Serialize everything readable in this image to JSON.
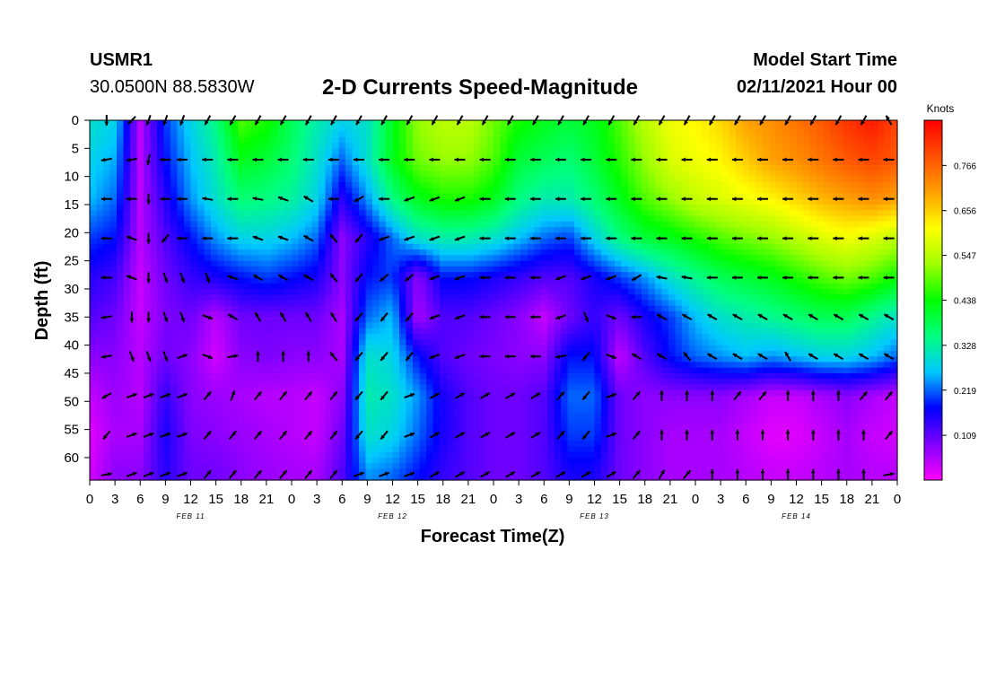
{
  "header": {
    "station": "USMR1",
    "coords": "30.0500N 88.5830W",
    "start_label": "Model Start Time",
    "start_date": "02/11/2021 Hour 00"
  },
  "chart_data": {
    "type": "heatmap",
    "title": "2-D Currents Speed-Magnitude",
    "xlabel": "Forecast Time(Z)",
    "ylabel": "Depth (ft)",
    "x_ticks": [
      "0",
      "3",
      "6",
      "9",
      "12",
      "15",
      "18",
      "21",
      "0",
      "3",
      "6",
      "9",
      "12",
      "15",
      "18",
      "21",
      "0",
      "3",
      "6",
      "9",
      "12",
      "15",
      "18",
      "21",
      "0",
      "3",
      "6",
      "9",
      "12",
      "15",
      "18",
      "21",
      "0"
    ],
    "x_range_hours": [
      0,
      96
    ],
    "day_labels": [
      "FEB 11",
      "FEB 12",
      "FEB 13",
      "FEB 14"
    ],
    "y_ticks": [
      0,
      5,
      10,
      15,
      20,
      25,
      30,
      35,
      40,
      45,
      50,
      55,
      60
    ],
    "y_range": [
      0,
      64
    ],
    "colorbar": {
      "title": "Knots",
      "ticks": [
        0.109,
        0.219,
        0.328,
        0.438,
        0.547,
        0.656,
        0.766
      ],
      "range": [
        0.0,
        0.876
      ],
      "colors": [
        "#ff00ff",
        "#8000ff",
        "#0000ff",
        "#00c8ff",
        "#00ff80",
        "#00ff00",
        "#a0ff00",
        "#ffff00",
        "#ffa000",
        "#ff5000",
        "#ff0000"
      ]
    },
    "speed_grid": {
      "hours": [
        0,
        3,
        6,
        9,
        12,
        15,
        18,
        21,
        24,
        27,
        30,
        33,
        36,
        39,
        42,
        45,
        48,
        51,
        54,
        57,
        60,
        63,
        66,
        69,
        72,
        75,
        78,
        81,
        84,
        87,
        90,
        93,
        96
      ],
      "depths": [
        0,
        7,
        14,
        21,
        28,
        35,
        42,
        49,
        56,
        63
      ],
      "values": [
        [
          0.3,
          0.28,
          0.05,
          0.2,
          0.28,
          0.35,
          0.48,
          0.45,
          0.38,
          0.32,
          0.28,
          0.3,
          0.42,
          0.52,
          0.55,
          0.55,
          0.5,
          0.45,
          0.42,
          0.4,
          0.42,
          0.48,
          0.55,
          0.6,
          0.62,
          0.65,
          0.7,
          0.72,
          0.75,
          0.78,
          0.82,
          0.85,
          0.8
        ],
        [
          0.28,
          0.25,
          0.05,
          0.18,
          0.26,
          0.32,
          0.42,
          0.4,
          0.36,
          0.3,
          0.22,
          0.3,
          0.42,
          0.5,
          0.52,
          0.52,
          0.48,
          0.4,
          0.38,
          0.36,
          0.4,
          0.46,
          0.52,
          0.58,
          0.6,
          0.62,
          0.66,
          0.7,
          0.72,
          0.75,
          0.78,
          0.8,
          0.78
        ],
        [
          0.26,
          0.22,
          0.05,
          0.15,
          0.24,
          0.3,
          0.36,
          0.35,
          0.33,
          0.28,
          0.15,
          0.24,
          0.35,
          0.42,
          0.45,
          0.45,
          0.42,
          0.35,
          0.32,
          0.32,
          0.36,
          0.42,
          0.48,
          0.52,
          0.56,
          0.58,
          0.6,
          0.62,
          0.65,
          0.68,
          0.7,
          0.72,
          0.7
        ],
        [
          0.2,
          0.18,
          0.05,
          0.12,
          0.18,
          0.24,
          0.28,
          0.28,
          0.26,
          0.22,
          0.08,
          0.15,
          0.22,
          0.3,
          0.32,
          0.32,
          0.3,
          0.26,
          0.22,
          0.2,
          0.28,
          0.35,
          0.4,
          0.42,
          0.45,
          0.48,
          0.5,
          0.52,
          0.55,
          0.58,
          0.6,
          0.58,
          0.55
        ],
        [
          0.15,
          0.13,
          0.04,
          0.1,
          0.14,
          0.16,
          0.18,
          0.2,
          0.18,
          0.16,
          0.08,
          0.18,
          0.2,
          0.08,
          0.18,
          0.18,
          0.16,
          0.14,
          0.12,
          0.12,
          0.16,
          0.2,
          0.24,
          0.3,
          0.34,
          0.38,
          0.4,
          0.42,
          0.45,
          0.48,
          0.5,
          0.48,
          0.44
        ],
        [
          0.12,
          0.1,
          0.04,
          0.09,
          0.1,
          0.05,
          0.1,
          0.1,
          0.1,
          0.1,
          0.06,
          0.22,
          0.26,
          0.06,
          0.12,
          0.12,
          0.1,
          0.08,
          0.04,
          0.1,
          0.14,
          0.1,
          0.16,
          0.2,
          0.26,
          0.3,
          0.32,
          0.34,
          0.36,
          0.38,
          0.38,
          0.34,
          0.3
        ],
        [
          0.08,
          0.08,
          0.05,
          0.1,
          0.08,
          0.03,
          0.08,
          0.09,
          0.08,
          0.08,
          0.06,
          0.3,
          0.28,
          0.18,
          0.12,
          0.1,
          0.09,
          0.08,
          0.08,
          0.18,
          0.18,
          0.04,
          0.12,
          0.18,
          0.22,
          0.24,
          0.26,
          0.24,
          0.26,
          0.28,
          0.28,
          0.26,
          0.22
        ],
        [
          0.04,
          0.07,
          0.05,
          0.14,
          0.08,
          0.07,
          0.06,
          0.05,
          0.05,
          0.04,
          0.08,
          0.32,
          0.3,
          0.24,
          0.16,
          0.12,
          0.1,
          0.1,
          0.12,
          0.22,
          0.22,
          0.1,
          0.08,
          0.08,
          0.08,
          0.08,
          0.06,
          0.04,
          0.04,
          0.06,
          0.08,
          0.06,
          0.04
        ],
        [
          0.02,
          0.06,
          0.06,
          0.16,
          0.09,
          0.08,
          0.07,
          0.06,
          0.05,
          0.04,
          0.1,
          0.3,
          0.28,
          0.22,
          0.16,
          0.12,
          0.1,
          0.1,
          0.12,
          0.2,
          0.2,
          0.1,
          0.08,
          0.06,
          0.06,
          0.06,
          0.04,
          0.02,
          0.02,
          0.04,
          0.06,
          0.04,
          0.03
        ],
        [
          0.03,
          0.08,
          0.08,
          0.15,
          0.1,
          0.1,
          0.08,
          0.07,
          0.06,
          0.06,
          0.12,
          0.24,
          0.22,
          0.18,
          0.14,
          0.12,
          0.1,
          0.1,
          0.12,
          0.16,
          0.16,
          0.1,
          0.08,
          0.06,
          0.06,
          0.06,
          0.05,
          0.04,
          0.04,
          0.05,
          0.06,
          0.05,
          0.05
        ]
      ]
    },
    "vectors": {
      "hours": [
        2,
        5,
        7,
        9,
        11,
        14,
        17,
        20,
        23,
        26,
        29,
        32,
        35,
        38,
        41,
        44,
        47,
        50,
        53,
        56,
        59,
        62,
        65,
        68,
        71,
        74,
        77,
        80,
        83,
        86,
        89,
        92,
        95
      ],
      "depths": [
        0,
        7,
        14,
        21,
        28,
        35,
        42,
        49,
        56,
        63
      ],
      "directions_deg": [
        [
          180,
          225,
          200,
          200,
          200,
          210,
          210,
          210,
          210,
          210,
          210,
          210,
          210,
          210,
          210,
          210,
          210,
          210,
          210,
          210,
          210,
          210,
          210,
          210,
          210,
          210,
          210,
          210,
          210,
          210,
          210,
          210,
          330
        ],
        [
          260,
          260,
          190,
          270,
          270,
          270,
          270,
          270,
          270,
          270,
          270,
          270,
          270,
          270,
          270,
          270,
          270,
          270,
          270,
          270,
          270,
          270,
          270,
          270,
          270,
          270,
          270,
          270,
          270,
          270,
          270,
          270,
          270
        ],
        [
          270,
          270,
          180,
          270,
          270,
          280,
          270,
          280,
          290,
          300,
          270,
          240,
          270,
          250,
          250,
          250,
          270,
          270,
          270,
          270,
          270,
          270,
          270,
          270,
          270,
          270,
          270,
          270,
          270,
          270,
          270,
          270,
          270
        ],
        [
          270,
          290,
          180,
          220,
          270,
          270,
          270,
          290,
          290,
          300,
          320,
          220,
          250,
          250,
          250,
          250,
          270,
          270,
          270,
          270,
          270,
          270,
          270,
          270,
          270,
          270,
          270,
          270,
          270,
          270,
          270,
          270,
          270
        ],
        [
          270,
          290,
          180,
          160,
          160,
          160,
          290,
          300,
          300,
          300,
          320,
          220,
          230,
          230,
          250,
          250,
          270,
          270,
          270,
          250,
          250,
          250,
          240,
          280,
          280,
          270,
          270,
          270,
          270,
          270,
          270,
          270,
          270
        ],
        [
          260,
          180,
          180,
          160,
          160,
          110,
          300,
          330,
          330,
          330,
          330,
          220,
          220,
          220,
          250,
          250,
          270,
          270,
          270,
          250,
          160,
          110,
          270,
          300,
          300,
          300,
          300,
          300,
          300,
          300,
          300,
          300,
          300
        ],
        [
          260,
          160,
          160,
          160,
          70,
          110,
          80,
          0,
          0,
          0,
          320,
          220,
          220,
          220,
          250,
          250,
          270,
          270,
          270,
          260,
          220,
          110,
          300,
          300,
          320,
          300,
          300,
          300,
          330,
          300,
          300,
          300,
          300
        ],
        [
          240,
          70,
          70,
          70,
          70,
          40,
          20,
          40,
          40,
          40,
          40,
          220,
          220,
          70,
          60,
          60,
          60,
          60,
          60,
          40,
          220,
          70,
          40,
          0,
          0,
          0,
          40,
          40,
          0,
          0,
          0,
          40,
          40
        ],
        [
          220,
          70,
          70,
          70,
          70,
          40,
          40,
          40,
          40,
          40,
          40,
          220,
          220,
          70,
          60,
          60,
          60,
          60,
          60,
          40,
          220,
          70,
          40,
          0,
          0,
          0,
          0,
          0,
          0,
          0,
          0,
          0,
          40
        ],
        [
          80,
          70,
          70,
          70,
          70,
          40,
          40,
          40,
          40,
          40,
          40,
          70,
          70,
          70,
          60,
          60,
          60,
          60,
          60,
          60,
          60,
          60,
          40,
          30,
          40,
          0,
          0,
          0,
          0,
          0,
          0,
          0,
          80
        ]
      ]
    }
  }
}
